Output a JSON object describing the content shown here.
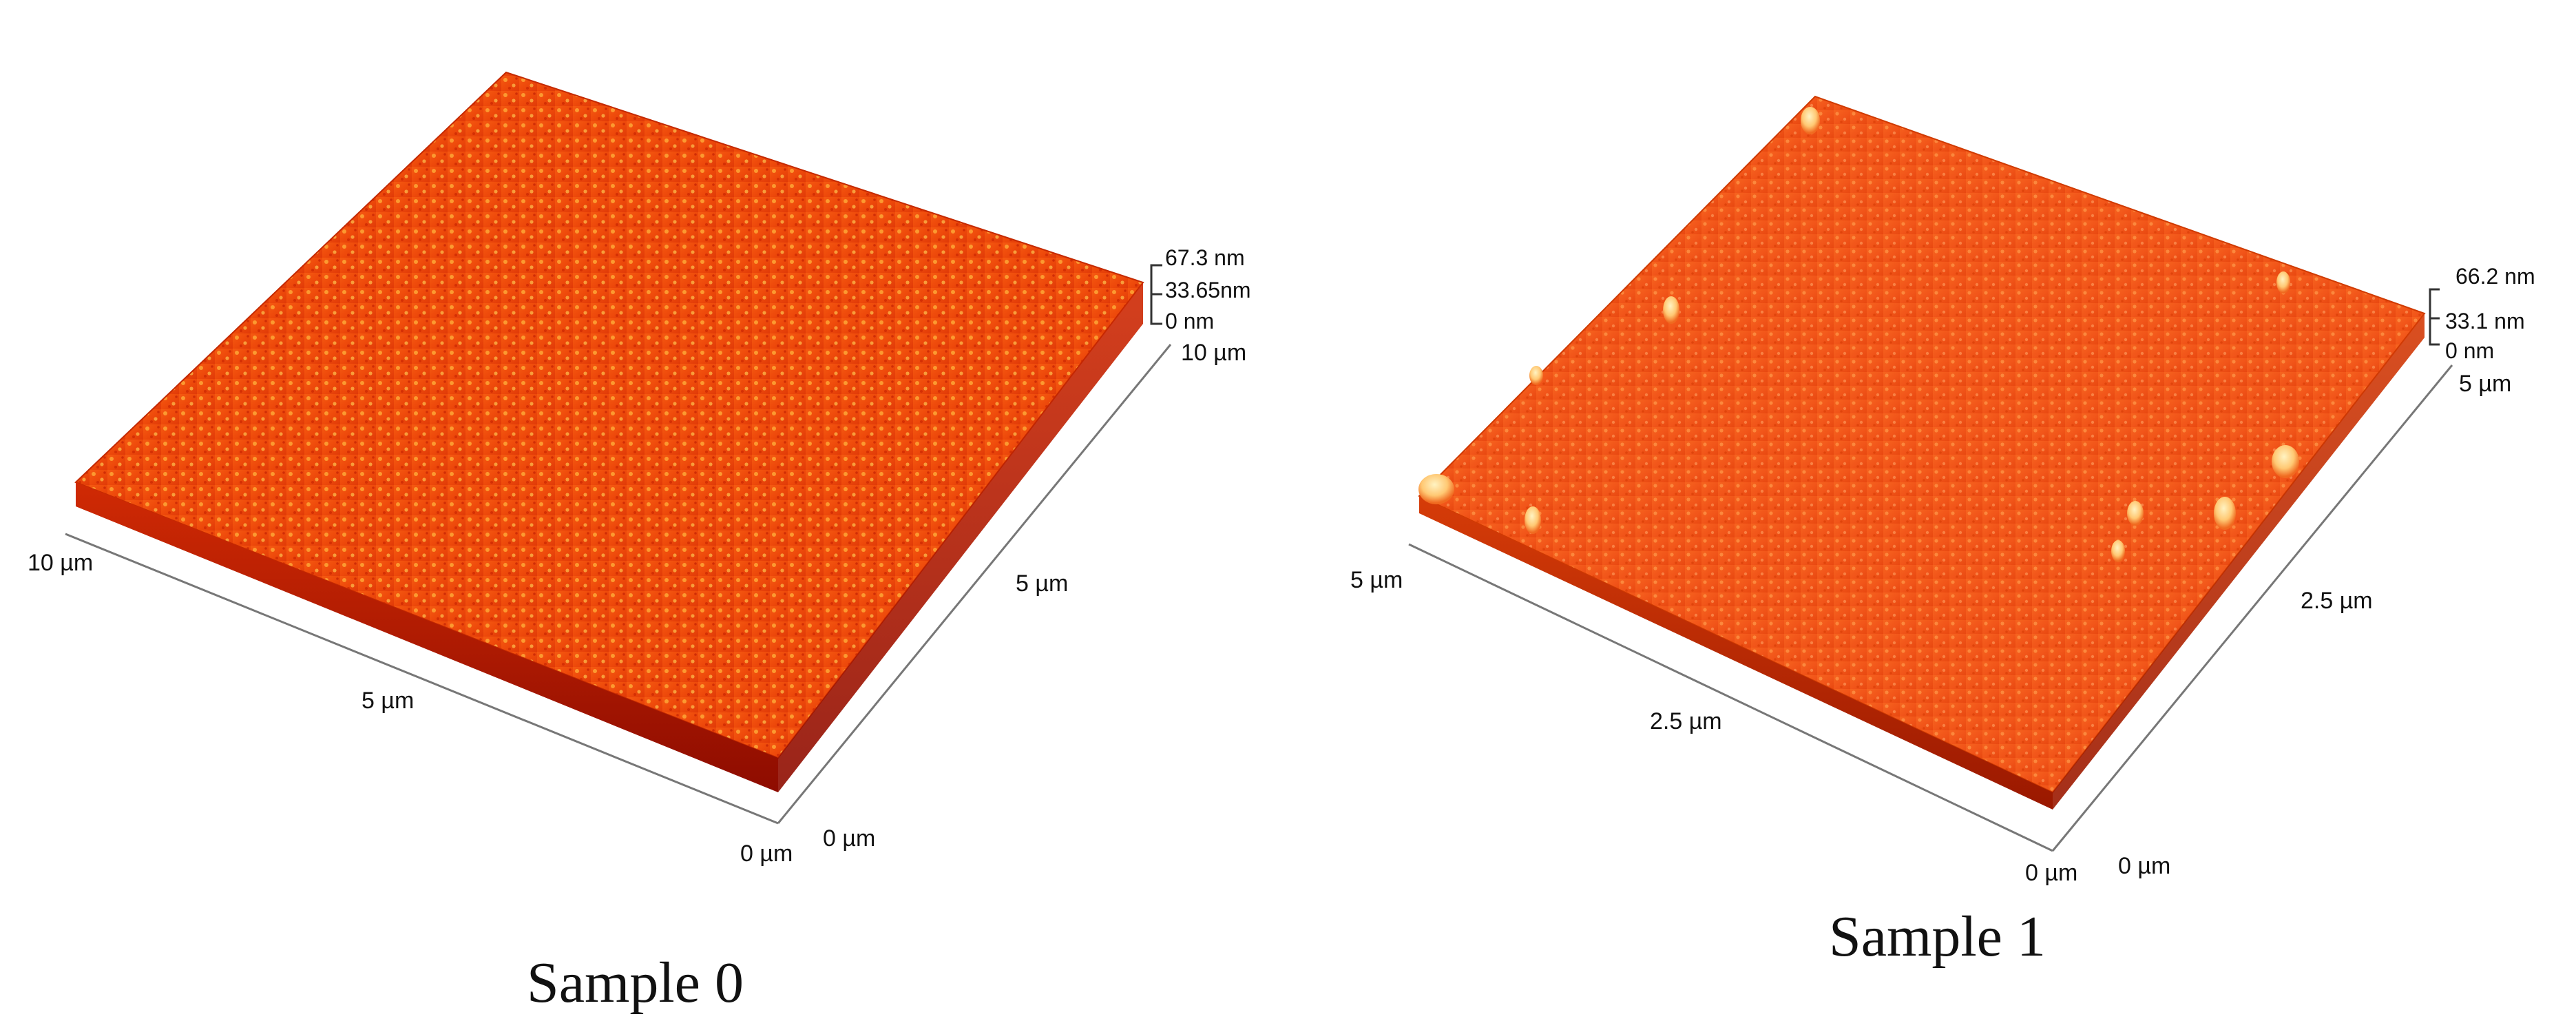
{
  "panels": [
    {
      "caption": "Sample 0",
      "x_axis": {
        "start": "10 µm",
        "mid": "5 µm",
        "end": "0 µm"
      },
      "y_axis": {
        "start": "0 µm",
        "mid": "5 µm",
        "end": "10 µm"
      },
      "z_scale": {
        "max": "67.3 nm",
        "mid": "33.65nm",
        "min": "0 nm"
      },
      "surface_colors": {
        "low": "#b31400",
        "mid": "#ee4a0b",
        "high": "#ffc24d"
      }
    },
    {
      "caption": "Sample 1",
      "x_axis": {
        "start": "5 µm",
        "mid": "2.5 µm",
        "end": "0 µm"
      },
      "y_axis": {
        "start": "0 µm",
        "mid": "2.5 µm",
        "end": "5 µm"
      },
      "z_scale": {
        "max": "66.2 nm",
        "mid": "33.1 nm",
        "min": "0 nm"
      },
      "surface_colors": {
        "low": "#c42d00",
        "mid": "#f2561a",
        "high": "#ffd88a"
      }
    }
  ]
}
